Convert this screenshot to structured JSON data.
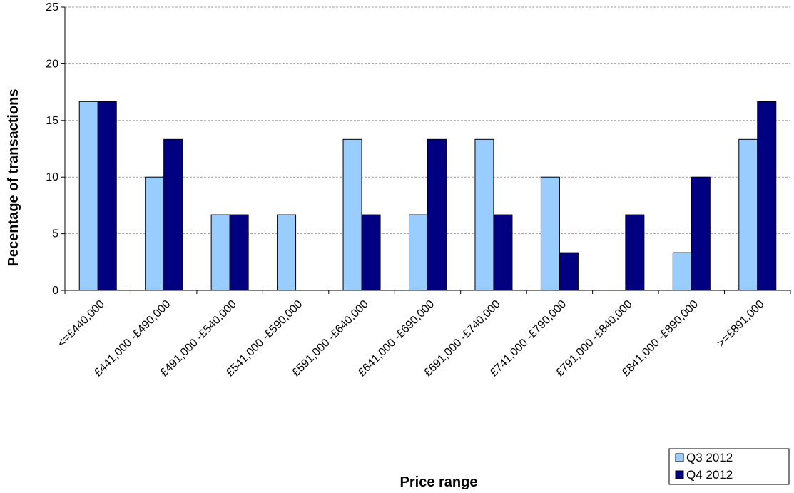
{
  "chart_data": {
    "type": "bar",
    "title": "",
    "xlabel": "Price range",
    "ylabel": "Pecentage of transactions",
    "ylim": [
      0,
      25
    ],
    "yticks": [
      0,
      5,
      10,
      15,
      20,
      25
    ],
    "grid": true,
    "legend_position": "bottom-right",
    "categories": [
      "<=£440,000",
      "£441,000 -£490,000",
      "£491,000 -£540,000",
      "£541,000 -£590,000",
      "£591,000 -£640,000",
      "£641,000 -£690,000",
      "£691,000 -£740,000",
      "£741,000 -£790,000",
      "£791,000 -£840,000",
      "£841,000 -£890,000",
      ">=£891,000"
    ],
    "series": [
      {
        "name": "Q3 2012",
        "color": "#99ccff",
        "values": [
          16.67,
          10.0,
          6.67,
          6.67,
          13.33,
          6.67,
          13.33,
          10.0,
          0,
          3.33,
          13.33
        ]
      },
      {
        "name": "Q4 2012",
        "color": "#000080",
        "values": [
          16.67,
          13.33,
          6.67,
          0,
          6.67,
          13.33,
          6.67,
          3.33,
          6.67,
          10.0,
          16.67
        ]
      }
    ]
  }
}
